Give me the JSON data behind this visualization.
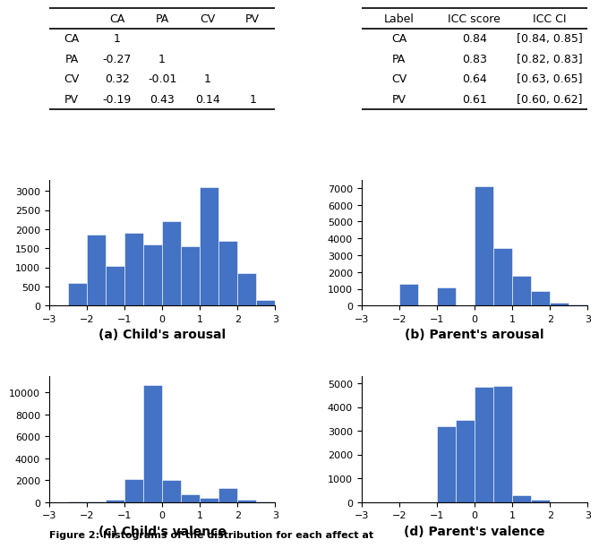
{
  "corr_table": {
    "cols": [
      "",
      "CA",
      "PA",
      "CV",
      "PV"
    ],
    "data": [
      [
        "CA",
        "1",
        "",
        "",
        ""
      ],
      [
        "PA",
        "-0.27",
        "1",
        "",
        ""
      ],
      [
        "CV",
        "0.32",
        "-0.01",
        "1",
        ""
      ],
      [
        "PV",
        "-0.19",
        "0.43",
        "0.14",
        "1"
      ]
    ]
  },
  "icc_table": {
    "cols": [
      "Label",
      "ICC score",
      "ICC CI"
    ],
    "data": [
      [
        "CA",
        "0.84",
        "[0.84, 0.85]"
      ],
      [
        "PA",
        "0.83",
        "[0.82, 0.83]"
      ],
      [
        "CV",
        "0.64",
        "[0.63, 0.65]"
      ],
      [
        "PV",
        "0.61",
        "[0.60, 0.62]"
      ]
    ]
  },
  "hist_ca": {
    "edges": [
      -3.0,
      -2.5,
      -2.0,
      -1.5,
      -1.0,
      -0.5,
      0.0,
      0.5,
      1.0,
      1.5,
      2.0,
      2.5,
      3.0
    ],
    "values": [
      0,
      600,
      1850,
      1050,
      1900,
      1600,
      2200,
      1550,
      3100,
      1700,
      850,
      150
    ],
    "title": "(a) Child's arousal",
    "xlim": [
      -3,
      3
    ],
    "yticks": [
      0,
      500,
      1000,
      1500,
      2000,
      2500,
      3000
    ],
    "ylim": [
      0,
      3300
    ]
  },
  "hist_pa": {
    "edges": [
      -3.0,
      -2.5,
      -2.0,
      -1.5,
      -1.0,
      -0.5,
      0.0,
      0.5,
      1.0,
      1.5,
      2.0,
      2.5,
      3.0
    ],
    "values": [
      0,
      0,
      1300,
      0,
      1100,
      0,
      7100,
      3450,
      1800,
      850,
      150,
      50
    ],
    "title": "(b) Parent's arousal",
    "xlim": [
      -3,
      3
    ],
    "yticks": [
      0,
      1000,
      2000,
      3000,
      4000,
      5000,
      6000,
      7000
    ],
    "ylim": [
      0,
      7500
    ]
  },
  "hist_cv": {
    "edges": [
      -3.0,
      -2.5,
      -2.0,
      -1.5,
      -1.0,
      -0.5,
      0.0,
      0.5,
      1.0,
      1.5,
      2.0,
      2.5,
      3.0
    ],
    "values": [
      0,
      100,
      100,
      200,
      2100,
      10700,
      2050,
      700,
      400,
      1250,
      200,
      100
    ],
    "title": "(c) Child's valence",
    "xlim": [
      -3,
      3
    ],
    "yticks": [
      0,
      2000,
      4000,
      6000,
      8000,
      10000
    ],
    "ylim": [
      0,
      11500
    ]
  },
  "hist_pv": {
    "edges": [
      -3.0,
      -2.5,
      -2.0,
      -1.5,
      -1.0,
      -0.5,
      0.0,
      0.5,
      1.0,
      1.5,
      2.0,
      2.5,
      3.0
    ],
    "values": [
      0,
      0,
      0,
      0,
      3200,
      3450,
      4850,
      4900,
      300,
      100,
      0,
      0
    ],
    "title": "(d) Parent's valence",
    "xlim": [
      -3,
      3
    ],
    "yticks": [
      0,
      1000,
      2000,
      3000,
      4000,
      5000
    ],
    "ylim": [
      0,
      5300
    ]
  },
  "bar_color": "#4472c4",
  "figure_caption": "Figure 2: Histograms of the distribution for each affect at",
  "hist_title_fontsize": 10,
  "table_fontsize": 9,
  "tick_fontsize": 8
}
